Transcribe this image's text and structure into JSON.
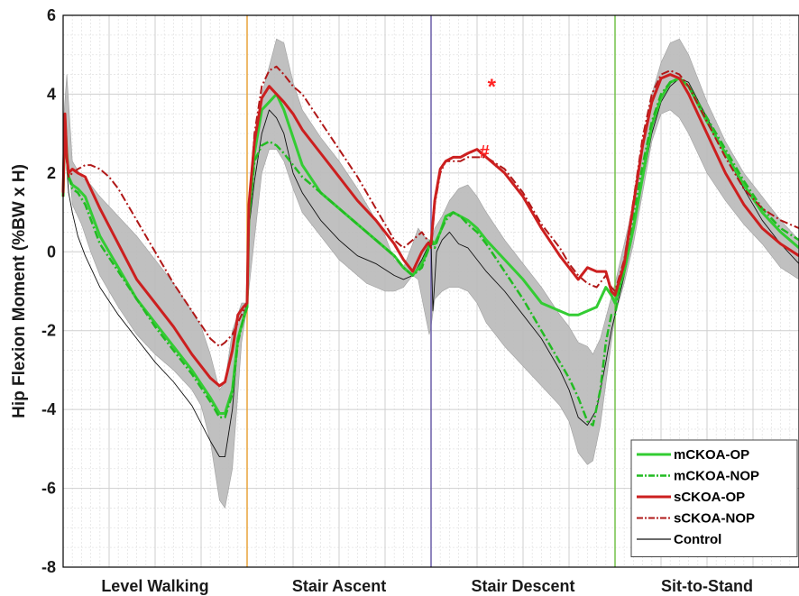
{
  "chart_data": {
    "type": "line",
    "title": "",
    "xlabel": "",
    "ylabel": "Hip Flexion Moment  (%BW x H)",
    "ylim": [
      -8,
      6
    ],
    "y_ticks": [
      "6",
      "4",
      "2",
      "0",
      "-2",
      "-4",
      "-6",
      "-8"
    ],
    "y_tick_values": [
      6,
      4,
      2,
      0,
      -2,
      -4,
      -6,
      -8
    ],
    "grid": true,
    "legend_position": "bottom-right",
    "phases": [
      {
        "name": "Level Walking",
        "range": [
          0,
          100
        ],
        "divider_color": "#e8a33a"
      },
      {
        "name": "Stair Ascent",
        "range": [
          100,
          200
        ],
        "divider_color": "#6b5ea8"
      },
      {
        "name": "Stair Descent",
        "range": [
          200,
          300
        ],
        "divider_color": "#74c24a"
      },
      {
        "name": "Sit-to-Stand",
        "range": [
          300,
          400
        ],
        "divider_color": null
      }
    ],
    "x_unit_note": "each phase 0-100% of cycle, concatenated",
    "band": {
      "name": "Control ± SD",
      "color": "#bdbdbd",
      "x": [
        0,
        2,
        5,
        10,
        15,
        20,
        30,
        40,
        50,
        60,
        70,
        75,
        80,
        85,
        88,
        92,
        97,
        100,
        102,
        108,
        112,
        116,
        120,
        125,
        130,
        140,
        150,
        160,
        165,
        170,
        175,
        180,
        185,
        190,
        193,
        196,
        199,
        200,
        202,
        206,
        210,
        215,
        220,
        225,
        230,
        240,
        250,
        260,
        270,
        275,
        280,
        285,
        288,
        292,
        296,
        300,
        305,
        310,
        315,
        320,
        325,
        330,
        335,
        340,
        350,
        360,
        370,
        380,
        390,
        400
      ],
      "upper": [
        3.2,
        4.5,
        2.3,
        1.9,
        1.7,
        1.4,
        0.9,
        0.4,
        -0.2,
        -0.8,
        -1.5,
        -1.9,
        -2.6,
        -3.5,
        -3.3,
        -2.0,
        -1.3,
        -1.3,
        1.7,
        4.0,
        4.7,
        5.4,
        5.3,
        4.3,
        3.6,
        2.9,
        2.3,
        1.6,
        1.2,
        0.8,
        0.4,
        -0.2,
        -0.4,
        0.2,
        0.6,
        0.4,
        0.3,
        0.2,
        0.6,
        0.9,
        1.3,
        1.6,
        1.7,
        1.4,
        1.0,
        0.3,
        -0.3,
        -0.9,
        -1.6,
        -1.9,
        -2.3,
        -2.4,
        -2.6,
        -2.2,
        -1.5,
        -0.8,
        0.2,
        1.2,
        2.8,
        4.0,
        4.8,
        5.3,
        5.4,
        5.0,
        3.8,
        2.8,
        2.0,
        1.4,
        0.8,
        0.3
      ],
      "lower": [
        1.6,
        2.8,
        1.2,
        0.7,
        0.0,
        -0.6,
        -1.4,
        -2.1,
        -2.6,
        -3.0,
        -3.5,
        -3.9,
        -4.8,
        -6.3,
        -6.5,
        -5.5,
        -2.3,
        -1.4,
        -0.5,
        2.0,
        2.6,
        2.6,
        2.3,
        1.6,
        1.0,
        0.4,
        -0.2,
        -0.6,
        -0.8,
        -0.9,
        -1.0,
        -1.0,
        -0.9,
        -0.6,
        -0.7,
        -1.4,
        -2.1,
        -1.9,
        -1.2,
        -1.0,
        -0.9,
        -0.9,
        -1.0,
        -1.3,
        -1.8,
        -2.4,
        -2.9,
        -3.4,
        -3.9,
        -4.3,
        -5.1,
        -5.4,
        -5.3,
        -4.4,
        -3.0,
        -1.6,
        -0.8,
        0.2,
        1.5,
        2.8,
        3.5,
        3.6,
        3.4,
        3.0,
        2.0,
        1.3,
        0.7,
        0.2,
        -0.4,
        -0.7
      ]
    },
    "series": [
      {
        "name": "mCKOA-OP",
        "color": "#33cc33",
        "style": "solid",
        "width": 3,
        "x": [
          0,
          1,
          2,
          3,
          5,
          8,
          12,
          20,
          30,
          40,
          50,
          60,
          70,
          80,
          85,
          88,
          92,
          95,
          98,
          100,
          101,
          104,
          108,
          112,
          116,
          120,
          125,
          130,
          140,
          150,
          160,
          170,
          180,
          185,
          190,
          195,
          198,
          200,
          202,
          205,
          208,
          212,
          216,
          220,
          225,
          230,
          240,
          250,
          260,
          270,
          275,
          280,
          285,
          290,
          295,
          298,
          300,
          305,
          310,
          315,
          320,
          325,
          330,
          335,
          340,
          350,
          360,
          370,
          380,
          390,
          400
        ],
        "y": [
          1.4,
          3.4,
          2.5,
          1.9,
          1.7,
          1.6,
          1.4,
          0.4,
          -0.4,
          -1.2,
          -1.8,
          -2.4,
          -3.0,
          -3.7,
          -4.1,
          -4.1,
          -3.5,
          -2.2,
          -1.7,
          -1.4,
          0.9,
          2.5,
          3.6,
          3.8,
          4.0,
          3.6,
          2.9,
          2.2,
          1.5,
          1.1,
          0.7,
          0.3,
          -0.1,
          -0.4,
          -0.6,
          -0.3,
          0.0,
          0.3,
          0.2,
          0.5,
          0.9,
          1.0,
          0.9,
          0.8,
          0.6,
          0.3,
          -0.2,
          -0.7,
          -1.3,
          -1.5,
          -1.6,
          -1.6,
          -1.5,
          -1.4,
          -0.9,
          -1.1,
          -1.3,
          -0.5,
          0.6,
          1.9,
          3.2,
          3.9,
          4.3,
          4.4,
          4.2,
          3.3,
          2.5,
          1.7,
          1.0,
          0.5,
          0.1
        ]
      },
      {
        "name": "mCKOA-NOP",
        "color": "#22bb22",
        "style": "dashdot",
        "width": 2.5,
        "x": [
          0,
          1,
          2,
          3,
          5,
          8,
          12,
          20,
          30,
          40,
          50,
          60,
          70,
          80,
          85,
          88,
          92,
          95,
          98,
          100,
          101,
          104,
          108,
          112,
          116,
          120,
          125,
          130,
          140,
          150,
          160,
          170,
          180,
          185,
          190,
          195,
          198,
          200,
          202,
          205,
          208,
          212,
          216,
          220,
          225,
          230,
          240,
          250,
          260,
          270,
          275,
          280,
          285,
          288,
          292,
          295,
          298,
          300,
          305,
          310,
          315,
          320,
          325,
          330,
          335,
          340,
          350,
          360,
          370,
          380,
          390,
          400
        ],
        "y": [
          1.4,
          3.4,
          2.4,
          1.9,
          1.6,
          1.5,
          1.2,
          0.2,
          -0.5,
          -1.2,
          -1.9,
          -2.5,
          -3.1,
          -3.8,
          -4.2,
          -4.2,
          -3.6,
          -2.3,
          -1.7,
          -1.4,
          0.8,
          2.3,
          2.7,
          2.8,
          2.7,
          2.5,
          2.2,
          1.9,
          1.5,
          1.1,
          0.7,
          0.3,
          -0.1,
          -0.4,
          -0.6,
          -0.4,
          0.0,
          0.3,
          0.1,
          0.5,
          0.8,
          1.0,
          0.9,
          0.7,
          0.5,
          0.2,
          -0.5,
          -1.2,
          -2.0,
          -2.8,
          -3.2,
          -3.7,
          -4.3,
          -4.4,
          -3.5,
          -2.3,
          -1.6,
          -1.6,
          -0.3,
          0.9,
          2.2,
          3.3,
          4.0,
          4.3,
          4.4,
          4.2,
          3.4,
          2.6,
          1.8,
          1.1,
          0.6,
          0.3
        ]
      },
      {
        "name": "sCKOA-OP",
        "color": "#cc1f1f",
        "style": "solid",
        "width": 3,
        "x": [
          0,
          1,
          2,
          3,
          5,
          8,
          12,
          20,
          30,
          40,
          50,
          60,
          70,
          80,
          85,
          88,
          92,
          95,
          98,
          100,
          101,
          104,
          108,
          112,
          116,
          120,
          125,
          130,
          140,
          150,
          160,
          170,
          180,
          185,
          190,
          195,
          198,
          200,
          202,
          205,
          208,
          212,
          216,
          220,
          225,
          230,
          240,
          250,
          260,
          270,
          275,
          280,
          285,
          290,
          295,
          298,
          300,
          305,
          310,
          315,
          320,
          325,
          330,
          335,
          340,
          350,
          360,
          370,
          380,
          390,
          400
        ],
        "y": [
          1.5,
          3.5,
          2.4,
          2.0,
          2.1,
          2.0,
          1.9,
          1.1,
          0.2,
          -0.7,
          -1.3,
          -1.9,
          -2.6,
          -3.2,
          -3.4,
          -3.3,
          -2.5,
          -1.6,
          -1.4,
          -1.3,
          1.2,
          2.8,
          3.9,
          4.2,
          4.0,
          3.8,
          3.5,
          3.1,
          2.5,
          1.9,
          1.3,
          0.8,
          0.2,
          -0.2,
          -0.5,
          0.0,
          0.2,
          0.2,
          1.3,
          2.1,
          2.3,
          2.4,
          2.4,
          2.5,
          2.6,
          2.4,
          2.0,
          1.4,
          0.6,
          -0.1,
          -0.4,
          -0.7,
          -0.4,
          -0.5,
          -0.5,
          -1.0,
          -1.1,
          -0.3,
          1.2,
          2.7,
          3.8,
          4.4,
          4.5,
          4.4,
          4.0,
          3.0,
          2.0,
          1.2,
          0.6,
          0.2,
          -0.1
        ]
      },
      {
        "name": "sCKOA-NOP",
        "color": "#b01818",
        "style": "dashdot",
        "width": 2,
        "x": [
          0,
          1,
          2,
          3,
          5,
          8,
          12,
          15,
          20,
          25,
          30,
          40,
          50,
          60,
          70,
          80,
          85,
          88,
          92,
          95,
          98,
          100,
          101,
          104,
          108,
          112,
          116,
          120,
          125,
          130,
          140,
          150,
          160,
          170,
          180,
          185,
          190,
          195,
          198,
          200,
          202,
          205,
          208,
          212,
          216,
          220,
          225,
          230,
          240,
          250,
          260,
          270,
          275,
          280,
          285,
          290,
          295,
          298,
          300,
          305,
          310,
          315,
          320,
          325,
          330,
          335,
          340,
          350,
          360,
          370,
          380,
          390,
          400
        ],
        "y": [
          1.4,
          3.3,
          2.3,
          1.9,
          2.0,
          2.1,
          2.2,
          2.2,
          2.1,
          1.9,
          1.6,
          0.8,
          0.0,
          -0.8,
          -1.5,
          -2.2,
          -2.4,
          -2.3,
          -2.1,
          -1.8,
          -1.5,
          -1.3,
          1.0,
          3.0,
          4.2,
          4.6,
          4.7,
          4.5,
          4.2,
          4.0,
          3.3,
          2.6,
          1.9,
          1.1,
          0.3,
          0.1,
          0.3,
          0.5,
          0.3,
          0.1,
          1.2,
          2.0,
          2.3,
          2.3,
          2.3,
          2.4,
          2.4,
          2.4,
          2.1,
          1.5,
          0.7,
          0.1,
          -0.3,
          -0.6,
          -0.8,
          -0.9,
          -0.6,
          -0.9,
          -1.0,
          -0.2,
          1.3,
          2.9,
          4.0,
          4.5,
          4.6,
          4.5,
          4.2,
          3.3,
          2.4,
          1.6,
          1.1,
          0.8,
          0.6
        ]
      },
      {
        "name": "Control",
        "color": "#111111",
        "style": "solid",
        "width": 0.9,
        "x": [
          0,
          1,
          2,
          3,
          5,
          8,
          12,
          20,
          30,
          40,
          50,
          60,
          70,
          80,
          85,
          88,
          92,
          95,
          98,
          100,
          101,
          104,
          108,
          112,
          116,
          120,
          125,
          130,
          140,
          150,
          160,
          170,
          180,
          185,
          190,
          195,
          198,
          200,
          201,
          203,
          206,
          210,
          215,
          220,
          225,
          230,
          240,
          250,
          260,
          270,
          275,
          280,
          285,
          290,
          295,
          298,
          300,
          305,
          310,
          315,
          320,
          325,
          330,
          335,
          340,
          350,
          360,
          370,
          380,
          390,
          400
        ],
        "y": [
          1.4,
          3.3,
          2.1,
          1.5,
          1.0,
          0.4,
          -0.1,
          -0.9,
          -1.6,
          -2.2,
          -2.8,
          -3.3,
          -3.9,
          -4.8,
          -5.2,
          -5.2,
          -4.0,
          -2.3,
          -1.6,
          -1.3,
          0.6,
          1.8,
          3.0,
          3.6,
          3.4,
          3.0,
          2.0,
          1.5,
          0.8,
          0.3,
          -0.1,
          -0.3,
          -0.6,
          -0.7,
          -0.6,
          -0.2,
          0.1,
          0.3,
          -1.5,
          0.0,
          0.3,
          0.5,
          0.2,
          0.1,
          -0.2,
          -0.5,
          -1.0,
          -1.6,
          -2.2,
          -3.0,
          -3.5,
          -4.2,
          -4.4,
          -4.0,
          -2.8,
          -2.0,
          -1.6,
          -0.6,
          0.5,
          1.8,
          3.0,
          3.8,
          4.2,
          4.4,
          4.3,
          3.4,
          2.5,
          1.6,
          0.8,
          0.2,
          -0.3
        ]
      }
    ],
    "annotations": [
      {
        "text": "*",
        "x": 233,
        "y": 4.2,
        "color": "#ff2222",
        "size": 24
      },
      {
        "text": "#",
        "x": 229,
        "y": 2.55,
        "color": "#ff2222",
        "size": 20
      }
    ]
  }
}
